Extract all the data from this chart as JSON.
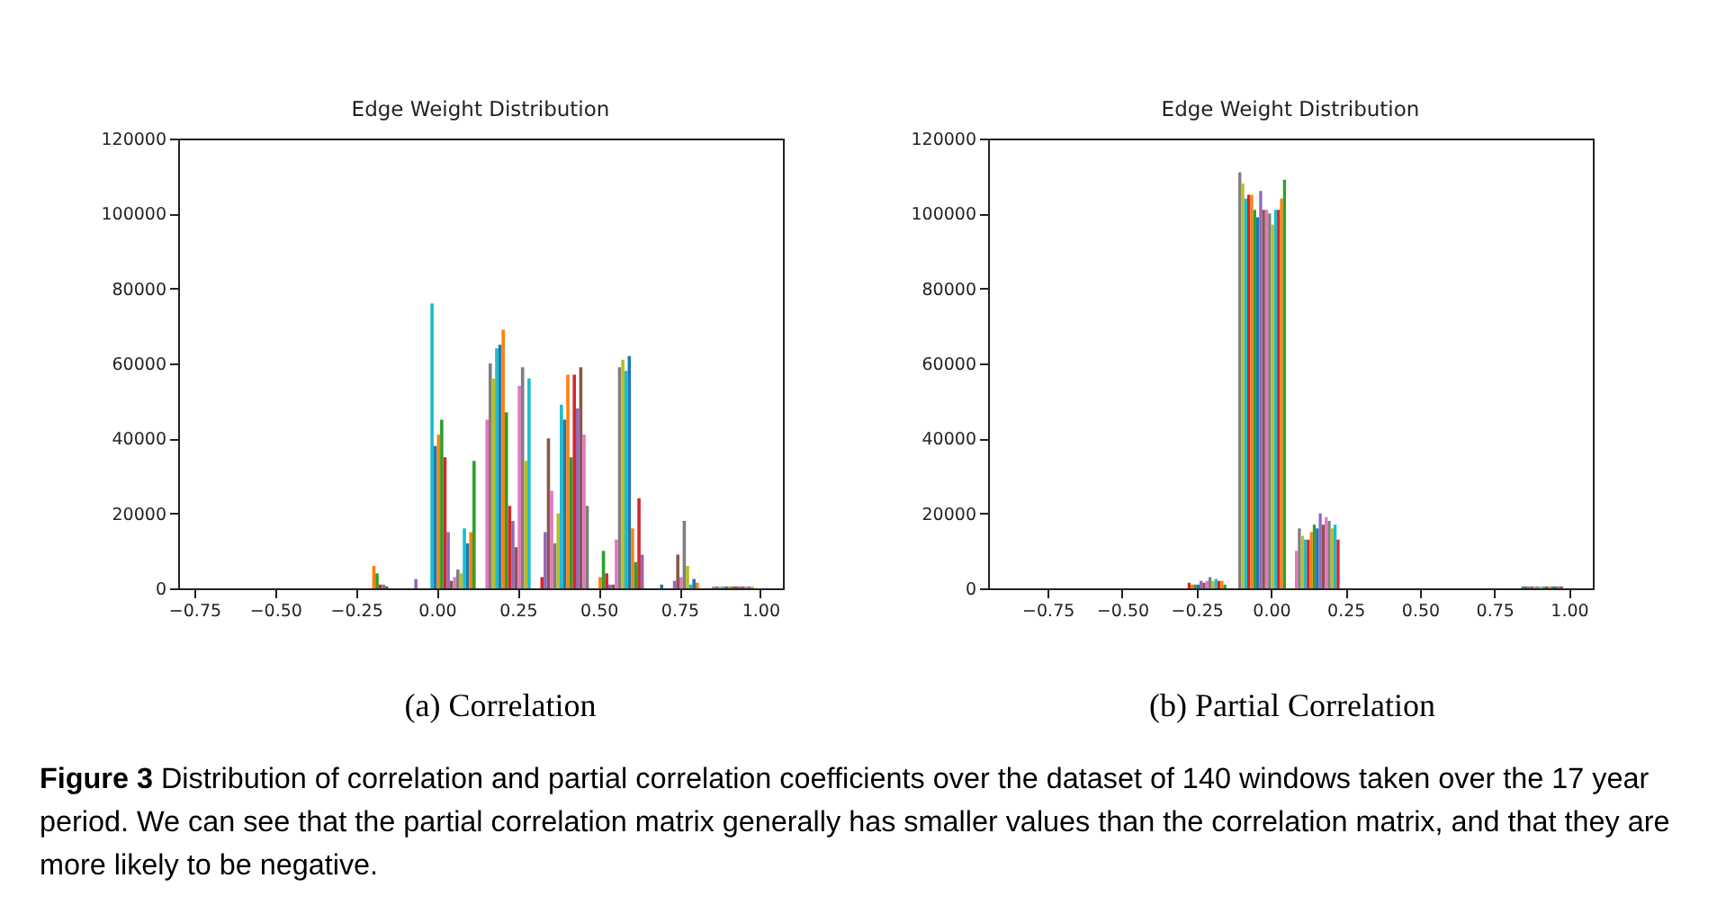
{
  "chart_data": [
    {
      "type": "histogram",
      "title": "Edge Weight Distribution",
      "bins": [
        -0.21,
        -0.2,
        -0.19,
        -0.18,
        -0.17,
        -0.16,
        -0.15,
        -0.14,
        -0.13,
        -0.12,
        -0.11,
        -0.1,
        -0.09,
        -0.08,
        -0.07,
        -0.06,
        -0.05,
        -0.04,
        -0.03,
        -0.02,
        -0.01,
        0,
        0.01,
        0.02,
        0.03,
        0.04,
        0.05,
        0.06,
        0.07,
        0.08,
        0.09,
        0.1,
        0.11,
        0.12,
        0.13,
        0.14,
        0.15,
        0.16,
        0.17,
        0.18,
        0.19,
        0.2,
        0.21,
        0.22,
        0.23,
        0.24,
        0.25,
        0.26,
        0.27,
        0.28,
        0.29,
        0.3,
        0.31,
        0.32,
        0.33,
        0.34,
        0.35,
        0.36,
        0.37,
        0.38,
        0.39,
        0.4,
        0.41,
        0.42,
        0.43,
        0.44,
        0.45,
        0.46,
        0.47,
        0.48,
        0.49,
        0.5,
        0.51,
        0.52,
        0.53,
        0.54,
        0.55,
        0.56,
        0.57,
        0.58,
        0.59,
        0.6,
        0.61,
        0.62,
        0.63,
        0.64,
        0.65,
        0.66,
        0.67,
        0.68,
        0.69,
        0.7,
        0.71,
        0.72,
        0.73,
        0.74,
        0.75,
        0.76,
        0.77,
        0.78,
        0.79,
        0.8,
        0.81,
        0.82,
        0.83,
        0.84,
        0.85,
        0.86,
        0.87,
        0.88,
        0.89,
        0.9,
        0.91,
        0.92,
        0.93,
        0.94,
        0.95,
        0.96,
        0.97,
        0.98
      ],
      "values": [
        0,
        6000,
        4000,
        1000,
        1000,
        500,
        0,
        0,
        0,
        0,
        0,
        0,
        0,
        0,
        2500,
        0,
        0,
        0,
        0,
        76000,
        38000,
        41000,
        45000,
        35000,
        15000,
        2000,
        3000,
        5000,
        4000,
        16000,
        12000,
        15000,
        34000,
        0,
        0,
        0,
        45000,
        60000,
        56000,
        64000,
        65000,
        69000,
        47000,
        22000,
        18000,
        11000,
        54000,
        59000,
        34000,
        56000,
        0,
        0,
        0,
        3000,
        15000,
        40000,
        26000,
        12000,
        20000,
        49000,
        45000,
        57000,
        35000,
        57000,
        48000,
        59000,
        41000,
        22000,
        0,
        0,
        0,
        3000,
        10000,
        4000,
        1000,
        1000,
        13000,
        59000,
        61000,
        58000,
        62000,
        16000,
        7000,
        24000,
        9000,
        0,
        0,
        0,
        0,
        0,
        1000,
        0,
        0,
        0,
        2000,
        9000,
        3000,
        18000,
        6000,
        1000,
        2500,
        1500,
        0,
        0,
        0,
        0,
        500,
        500,
        500,
        500,
        500,
        500,
        500,
        500,
        500,
        500,
        500,
        500,
        500
      ],
      "colors": [
        "#1f77b4",
        "#ff7f0e",
        "#2ca02c",
        "#d62728",
        "#9467bd",
        "#8c564b",
        "#e377c2",
        "#7f7f7f",
        "#bcbd22",
        "#17becf",
        "#1f77b4",
        "#ff7f0e",
        "#2ca02c",
        "#d62728",
        "#9467bd",
        "#8c564b",
        "#e377c2",
        "#7f7f7f",
        "#bcbd22",
        "#17becf",
        "#1f77b4",
        "#ff7f0e",
        "#2ca02c",
        "#d62728",
        "#9467bd",
        "#8c564b",
        "#e377c2",
        "#7f7f7f",
        "#bcbd22",
        "#17becf",
        "#1f77b4",
        "#ff7f0e",
        "#2ca02c",
        "#d62728",
        "#9467bd",
        "#8c564b",
        "#e377c2",
        "#7f7f7f",
        "#bcbd22",
        "#17becf",
        "#1f77b4",
        "#ff7f0e",
        "#2ca02c",
        "#d62728",
        "#9467bd",
        "#8c564b",
        "#e377c2",
        "#7f7f7f",
        "#bcbd22",
        "#17becf",
        "#1f77b4",
        "#ff7f0e",
        "#2ca02c",
        "#d62728",
        "#9467bd",
        "#8c564b",
        "#e377c2",
        "#7f7f7f",
        "#bcbd22",
        "#17becf",
        "#1f77b4",
        "#ff7f0e",
        "#2ca02c",
        "#d62728",
        "#9467bd",
        "#8c564b",
        "#e377c2",
        "#7f7f7f",
        "#bcbd22",
        "#17becf",
        "#1f77b4",
        "#ff7f0e",
        "#2ca02c",
        "#d62728",
        "#9467bd",
        "#8c564b",
        "#e377c2",
        "#7f7f7f",
        "#bcbd22",
        "#17becf",
        "#1f77b4",
        "#ff7f0e",
        "#2ca02c",
        "#d62728",
        "#9467bd",
        "#8c564b",
        "#e377c2",
        "#7f7f7f",
        "#bcbd22",
        "#17becf",
        "#1f77b4",
        "#ff7f0e",
        "#2ca02c",
        "#d62728",
        "#9467bd",
        "#8c564b",
        "#e377c2",
        "#7f7f7f",
        "#bcbd22",
        "#17becf",
        "#1f77b4",
        "#ff7f0e",
        "#2ca02c",
        "#d62728",
        "#9467bd",
        "#8c564b",
        "#e377c2",
        "#7f7f7f",
        "#bcbd22",
        "#17becf",
        "#1f77b4",
        "#ff7f0e",
        "#2ca02c",
        "#d62728",
        "#9467bd",
        "#8c564b",
        "#e377c2",
        "#7f7f7f",
        "#bcbd22"
      ],
      "xlim": [
        -0.8,
        1.07
      ],
      "xticks": [
        {
          "value": -0.75,
          "label": "−0.75"
        },
        {
          "value": -0.5,
          "label": "−0.50"
        },
        {
          "value": -0.25,
          "label": "−0.25"
        },
        {
          "value": 0,
          "label": "0.00"
        },
        {
          "value": 0.25,
          "label": "0.25"
        },
        {
          "value": 0.5,
          "label": "0.50"
        },
        {
          "value": 0.75,
          "label": "0.75"
        },
        {
          "value": 1,
          "label": "1.00"
        }
      ],
      "ylim": [
        0,
        120000
      ],
      "yticks": [
        0,
        20000,
        40000,
        60000,
        80000,
        100000,
        120000
      ],
      "annotations": [
        "(a) Correlation",
        "Figure 3 Distribution of correlation and partial correlation coefficients over the dataset of 140 windows taken over the 17 year period. We can see that the partial correlation matrix generally has smaller values than the correlation matrix, and that they are more likely to be negative."
      ]
    },
    {
      "type": "histogram",
      "title": "Edge Weight Distribution",
      "bins": [
        -0.28,
        -0.27,
        -0.26,
        -0.25,
        -0.24,
        -0.23,
        -0.22,
        -0.21,
        -0.2,
        -0.19,
        -0.18,
        -0.17,
        -0.16,
        -0.15,
        -0.14,
        -0.13,
        -0.12,
        -0.11,
        -0.1,
        -0.09,
        -0.08,
        -0.07,
        -0.06,
        -0.05,
        -0.04,
        -0.03,
        -0.02,
        -0.01,
        0,
        0.01,
        0.02,
        0.03,
        0.04,
        0.05,
        0.06,
        0.07,
        0.08,
        0.09,
        0.1,
        0.11,
        0.12,
        0.13,
        0.14,
        0.15,
        0.16,
        0.17,
        0.18,
        0.19,
        0.2,
        0.21,
        0.22,
        0.23,
        0.24,
        0.25,
        0.26,
        0.27,
        0.28,
        0.29,
        0.3,
        0.31,
        0.32,
        0.33,
        0.34,
        0.35,
        0.36,
        0.37,
        0.38,
        0.39,
        0.4,
        0.41,
        0.42,
        0.43,
        0.44,
        0.45,
        0.46,
        0.47,
        0.48,
        0.49,
        0.5,
        0.51,
        0.52,
        0.53,
        0.54,
        0.55,
        0.56,
        0.57,
        0.58,
        0.59,
        0.6,
        0.61,
        0.62,
        0.63,
        0.64,
        0.65,
        0.66,
        0.67,
        0.68,
        0.69,
        0.7,
        0.71,
        0.72,
        0.73,
        0.74,
        0.75,
        0.76,
        0.77,
        0.78,
        0.79,
        0.8,
        0.81,
        0.82,
        0.83,
        0.84,
        0.85,
        0.86,
        0.87,
        0.88,
        0.89,
        0.9,
        0.91,
        0.92,
        0.93,
        0.94,
        0.95,
        0.96,
        0.97,
        0.98
      ],
      "values": [
        1500,
        1000,
        1000,
        1000,
        2000,
        1500,
        2000,
        3000,
        2000,
        2500,
        2000,
        2000,
        1000,
        0,
        0,
        0,
        0,
        111000,
        108000,
        104000,
        105000,
        105000,
        101000,
        99000,
        106000,
        101000,
        101000,
        100000,
        97000,
        101000,
        101000,
        104000,
        109000,
        0,
        0,
        0,
        10000,
        16000,
        14000,
        13000,
        13000,
        15000,
        17000,
        16000,
        20000,
        17000,
        19000,
        18000,
        16000,
        17000,
        13000,
        0,
        0,
        0,
        0,
        0,
        0,
        0,
        0,
        0,
        0,
        0,
        0,
        0,
        0,
        0,
        0,
        0,
        0,
        0,
        0,
        0,
        0,
        0,
        0,
        0,
        0,
        0,
        0,
        0,
        0,
        0,
        0,
        0,
        0,
        0,
        0,
        0,
        0,
        0,
        0,
        0,
        0,
        0,
        0,
        0,
        0,
        0,
        0,
        0,
        0,
        0,
        0,
        0,
        0,
        0,
        0,
        0,
        0,
        0,
        0,
        0,
        500,
        500,
        500,
        500,
        500,
        500,
        500,
        500,
        500,
        500,
        500,
        500,
        500,
        500
      ],
      "colors": [
        "#d62728",
        "#ff7f0e",
        "#2ca02c",
        "#1f77b4",
        "#9467bd",
        "#8c564b",
        "#e377c2",
        "#7f7f7f",
        "#bcbd22",
        "#17becf",
        "#d62728",
        "#ff7f0e",
        "#2ca02c",
        "#1f77b4",
        "#9467bd",
        "#8c564b",
        "#e377c2",
        "#7f7f7f",
        "#bcbd22",
        "#17becf",
        "#d62728",
        "#ff7f0e",
        "#2ca02c",
        "#1f77b4",
        "#9467bd",
        "#8c564b",
        "#e377c2",
        "#7f7f7f",
        "#bcbd22",
        "#17becf",
        "#d62728",
        "#ff7f0e",
        "#2ca02c",
        "#1f77b4",
        "#9467bd",
        "#8c564b",
        "#e377c2",
        "#7f7f7f",
        "#bcbd22",
        "#17becf",
        "#d62728",
        "#ff7f0e",
        "#2ca02c",
        "#1f77b4",
        "#9467bd",
        "#8c564b",
        "#e377c2",
        "#7f7f7f",
        "#bcbd22",
        "#17becf",
        "#d62728",
        "#ff7f0e",
        "#2ca02c",
        "#1f77b4",
        "#9467bd",
        "#8c564b",
        "#e377c2",
        "#7f7f7f",
        "#bcbd22",
        "#17becf",
        "#d62728",
        "#ff7f0e",
        "#2ca02c",
        "#1f77b4",
        "#9467bd",
        "#8c564b",
        "#e377c2",
        "#7f7f7f",
        "#bcbd22",
        "#17becf",
        "#d62728",
        "#ff7f0e",
        "#2ca02c",
        "#1f77b4",
        "#9467bd",
        "#8c564b",
        "#e377c2",
        "#7f7f7f",
        "#bcbd22",
        "#17becf",
        "#d62728",
        "#ff7f0e",
        "#2ca02c",
        "#1f77b4",
        "#9467bd",
        "#8c564b",
        "#e377c2",
        "#7f7f7f",
        "#bcbd22",
        "#17becf",
        "#d62728",
        "#ff7f0e",
        "#2ca02c",
        "#1f77b4",
        "#9467bd",
        "#8c564b",
        "#e377c2",
        "#7f7f7f",
        "#bcbd22",
        "#17becf",
        "#d62728",
        "#ff7f0e",
        "#2ca02c",
        "#1f77b4",
        "#9467bd",
        "#8c564b",
        "#e377c2",
        "#7f7f7f",
        "#bcbd22",
        "#17becf",
        "#d62728",
        "#ff7f0e",
        "#2ca02c",
        "#1f77b4",
        "#9467bd",
        "#8c564b",
        "#e377c2",
        "#7f7f7f",
        "#bcbd22",
        "#17becf",
        "#d62728",
        "#ff7f0e",
        "#2ca02c",
        "#1f77b4",
        "#9467bd",
        "#8c564b"
      ],
      "xlim": [
        -0.95,
        1.08
      ],
      "xticks": [
        {
          "value": -0.75,
          "label": "−0.75"
        },
        {
          "value": -0.5,
          "label": "−0.50"
        },
        {
          "value": -0.25,
          "label": "−0.25"
        },
        {
          "value": 0,
          "label": "0.00"
        },
        {
          "value": 0.25,
          "label": "0.25"
        },
        {
          "value": 0.5,
          "label": "0.50"
        },
        {
          "value": 0.75,
          "label": "0.75"
        },
        {
          "value": 1,
          "label": "1.00"
        }
      ],
      "ylim": [
        0,
        120000
      ],
      "yticks": [
        0,
        20000,
        40000,
        60000,
        80000,
        100000,
        120000
      ],
      "annotations": [
        "(b) Partial Correlation"
      ]
    }
  ]
}
